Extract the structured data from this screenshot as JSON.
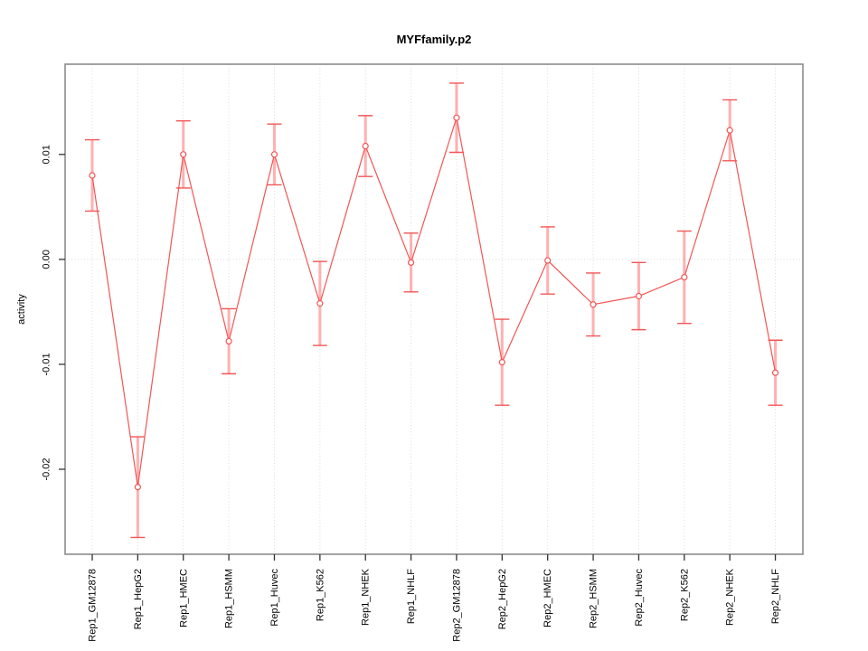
{
  "chart_data": {
    "type": "line",
    "title": "MYFfamily.p2",
    "ylabel": "activity",
    "xlabel": "",
    "legend_position": "none",
    "marker": "open-circle",
    "categories": [
      "Rep1_GM12878",
      "Rep1_HepG2",
      "Rep1_HMEC",
      "Rep1_HSMM",
      "Rep1_Huvec",
      "Rep1_K562",
      "Rep1_NHEK",
      "Rep1_NHLF",
      "Rep2_GM12878",
      "Rep2_HepG2",
      "Rep2_HMEC",
      "Rep2_HSMM",
      "Rep2_Huvec",
      "Rep2_K562",
      "Rep2_NHEK",
      "Rep2_NHLF"
    ],
    "series": [
      {
        "name": "activity",
        "values": [
          0.008,
          -0.0217,
          0.01,
          -0.0078,
          0.01,
          -0.0042,
          0.0108,
          -0.0003,
          0.0135,
          -0.0098,
          -0.0001,
          -0.0043,
          -0.0035,
          -0.0017,
          0.0123,
          -0.0108
        ],
        "errors": [
          0.0034,
          0.0048,
          0.0032,
          0.0031,
          0.0029,
          0.004,
          0.0029,
          0.0028,
          0.0033,
          0.0041,
          0.0032,
          0.003,
          0.0032,
          0.0044,
          0.0029,
          0.0031
        ]
      }
    ],
    "yticks": {
      "values": [
        0.01,
        0.0,
        -0.01,
        -0.02
      ],
      "labels": [
        "0.01",
        "0.00",
        "-0.01",
        "-0.02"
      ]
    },
    "ylim": [
      -0.0281,
      0.0186
    ],
    "grid": {
      "vertical_per_category": true,
      "horizontal_at_zero": true,
      "style": "dotted"
    },
    "colors": {
      "line": "#f25555",
      "marker_stroke": "#f25555",
      "marker_fill": "#ffffff",
      "error_shaft": "#ffb0b0",
      "error_cap": "#f25555",
      "grid": "#dcdcdc",
      "box": "#8c8c8c",
      "tick": "#333333",
      "text": "#000000",
      "background": "#ffffff"
    }
  }
}
